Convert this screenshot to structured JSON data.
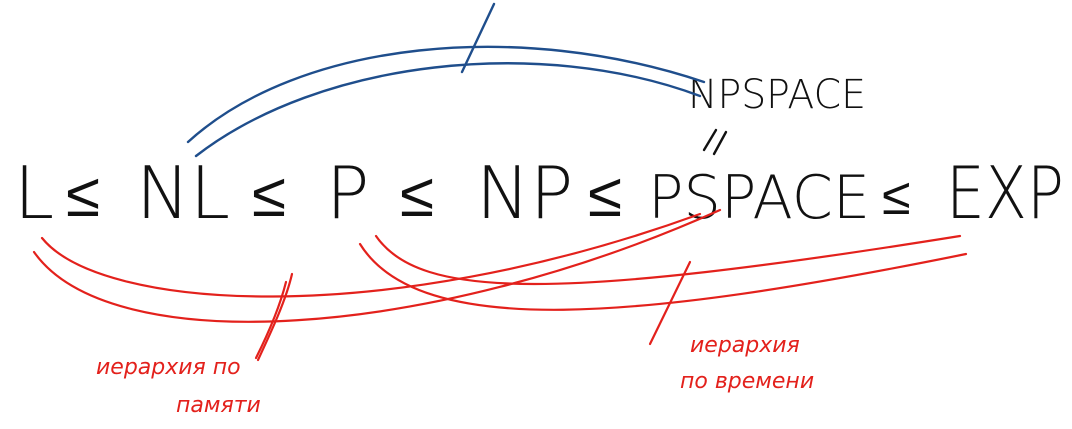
{
  "colors": {
    "ink": "#111111",
    "blue": "#1f4e8c",
    "red": "#e3211c"
  },
  "chain": {
    "L": "L",
    "NL": "NL",
    "P": "P",
    "NP": "NP",
    "PSPACE": "PSPACE",
    "EXP": "EXP",
    "leq": "≤"
  },
  "npspace": {
    "label": "NPSPACE",
    "equal_mark": "//"
  },
  "annotations": {
    "memory_line1": "иерархия по",
    "memory_line2": "памяти",
    "time_line1": "иерархия",
    "time_line2": "по времени"
  }
}
